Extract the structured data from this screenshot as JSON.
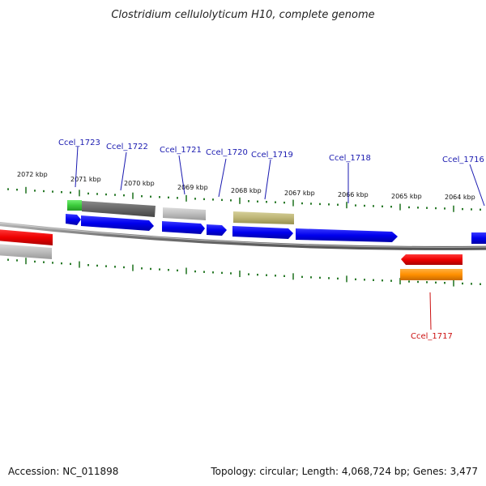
{
  "title": "Clostridium cellulolyticum H10, complete genome",
  "footer": {
    "accession": "Accession: NC_011898",
    "summary": "Topology: circular; Length: 4,068,724 bp; Genes: 3,477"
  },
  "colors": {
    "forward_cds": "#0a0aee",
    "reverse_cds": "#ee0a0a",
    "label_forward": "#1a1ab0",
    "label_reverse": "#cc1111",
    "ticks": "#2a7a2a",
    "backbone": "#888888"
  },
  "scale_labels": [
    "2072 kbp",
    "2071 kbp",
    "2070 kbp",
    "2069 kbp",
    "2068 kbp",
    "2067 kbp",
    "2066 kbp",
    "2065 kbp",
    "2064 kbp"
  ],
  "gene_labels": [
    "Ccel_1723",
    "Ccel_1722",
    "Ccel_1721",
    "Ccel_1720",
    "Ccel_1719",
    "Ccel_1718",
    "Ccel_1716",
    "Ccel_1717"
  ]
}
